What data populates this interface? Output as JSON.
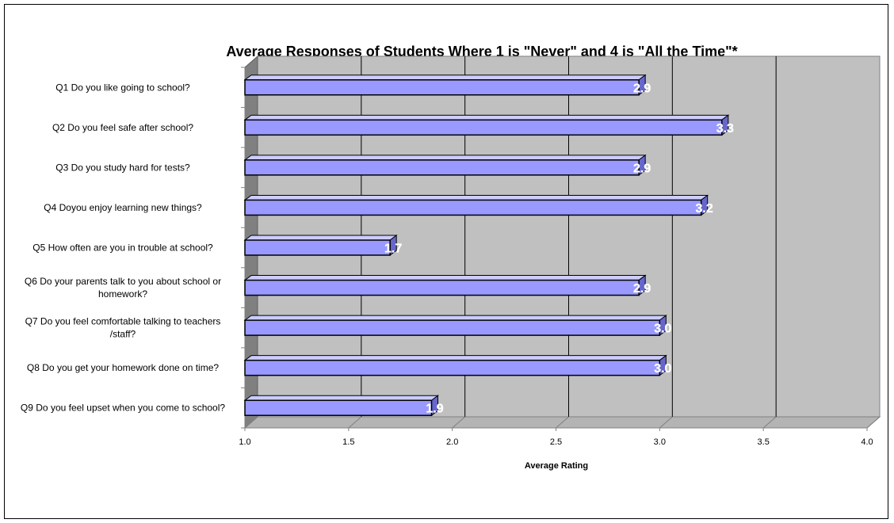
{
  "chart_data": {
    "type": "bar",
    "orientation": "horizontal",
    "title": "Average Responses of Students Where 1 is \"Never\" and 4 is \"All the Time\"*",
    "xlabel": "Average Rating",
    "ylabel": "",
    "xlim": [
      1.0,
      4.0
    ],
    "x_ticks": [
      "1.0",
      "1.5",
      "2.0",
      "2.5",
      "3.0",
      "3.5",
      "4.0"
    ],
    "categories": [
      "Q1 Do you like going to school?",
      "Q2 Do you feel safe after school?",
      "Q3 Do you study hard for tests?",
      "Q4 Doyou enjoy learning new things?",
      "Q5 How often are you in trouble at school?",
      "Q6 Do your parents talk to you about school or homework?",
      "Q7 Do you feel comfortable talking to teachers /staff?",
      "Q8 Do you get your homework done on time?",
      "Q9 Do you feel upset when you come to school?"
    ],
    "values": [
      2.9,
      3.3,
      2.9,
      3.2,
      1.7,
      2.9,
      3.0,
      3.0,
      1.9
    ],
    "data_labels": [
      "2.9",
      "3.3",
      "2.9",
      "3.2",
      "1.7",
      "2.9",
      "3.0",
      "3.0",
      "1.9"
    ],
    "grid": true,
    "legend": "none",
    "colors": {
      "bar": "#9999ff",
      "bar_top": "#ccccff",
      "bar_edge": "#000000",
      "wall": "#c0c0c0",
      "floor": "#b4b4b4",
      "side_wall": "#808080",
      "gridline": "#000000",
      "label": "#ffffff"
    }
  }
}
